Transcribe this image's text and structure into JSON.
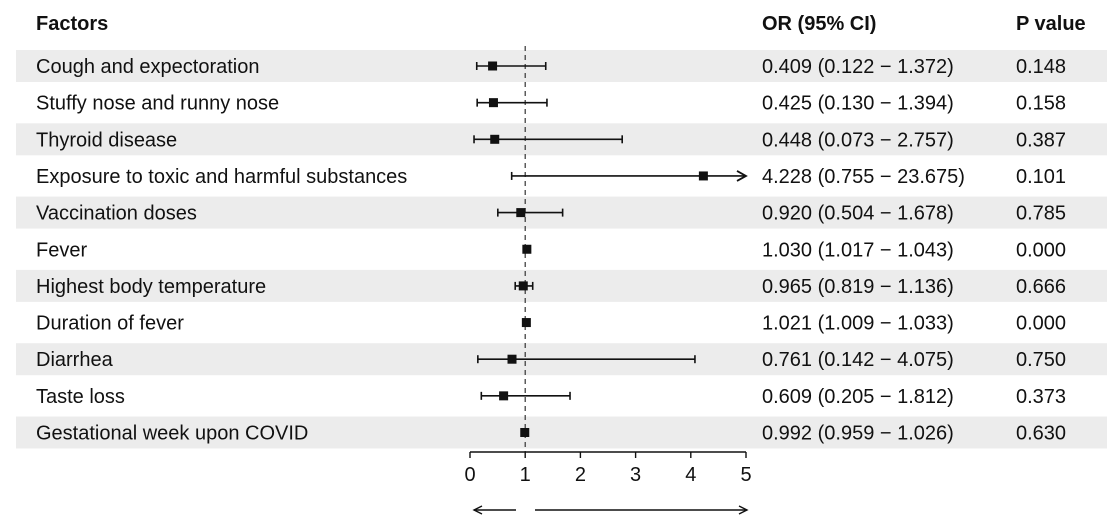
{
  "chart_data": {
    "type": "forest",
    "headers": {
      "factors": "Factors",
      "or_ci": "OR (95% CI)",
      "p_value": "P value"
    },
    "rows": [
      {
        "factor": "Cough and expectoration",
        "or": 0.409,
        "lo": 0.122,
        "hi": 1.372,
        "or_text": "0.409 (0.122 − 1.372)",
        "p": "0.148",
        "shaded": true
      },
      {
        "factor": "Stuffy nose and runny nose",
        "or": 0.425,
        "lo": 0.13,
        "hi": 1.394,
        "or_text": "0.425 (0.130 − 1.394)",
        "p": "0.158",
        "shaded": false
      },
      {
        "factor": "Thyroid disease",
        "or": 0.448,
        "lo": 0.073,
        "hi": 2.757,
        "or_text": "0.448 (0.073 − 2.757)",
        "p": "0.387",
        "shaded": true
      },
      {
        "factor": "Exposure to toxic and harmful substances",
        "or": 4.228,
        "lo": 0.755,
        "hi": 23.675,
        "or_text": "4.228 (0.755 − 23.675)",
        "p": "0.101",
        "shaded": false
      },
      {
        "factor": "Vaccination doses",
        "or": 0.92,
        "lo": 0.504,
        "hi": 1.678,
        "or_text": "0.920 (0.504 − 1.678)",
        "p": "0.785",
        "shaded": true
      },
      {
        "factor": "Fever",
        "or": 1.03,
        "lo": 1.017,
        "hi": 1.043,
        "or_text": "1.030 (1.017 − 1.043)",
        "p": "0.000",
        "shaded": false
      },
      {
        "factor": "Highest body temperature",
        "or": 0.965,
        "lo": 0.819,
        "hi": 1.136,
        "or_text": "0.965 (0.819 − 1.136)",
        "p": "0.666",
        "shaded": true
      },
      {
        "factor": "Duration of fever",
        "or": 1.021,
        "lo": 1.009,
        "hi": 1.033,
        "or_text": "1.021 (1.009 − 1.033)",
        "p": "0.000",
        "shaded": false
      },
      {
        "factor": "Diarrhea",
        "or": 0.761,
        "lo": 0.142,
        "hi": 4.075,
        "or_text": "0.761 (0.142 − 4.075)",
        "p": "0.750",
        "shaded": true
      },
      {
        "factor": "Taste loss",
        "or": 0.609,
        "lo": 0.205,
        "hi": 1.812,
        "or_text": "0.609 (0.205 − 1.812)",
        "p": "0.373",
        "shaded": false
      },
      {
        "factor": "Gestational week upon COVID",
        "or": 0.992,
        "lo": 0.959,
        "hi": 1.026,
        "or_text": "0.992 (0.959 − 1.026)",
        "p": "0.630",
        "shaded": true
      }
    ],
    "xlim": [
      0,
      5
    ],
    "xticks": [
      "0",
      "1",
      "2",
      "3",
      "4",
      "5"
    ],
    "reference_line": 1,
    "colors": {
      "row_shade": "#ececec",
      "mark": "#111111"
    }
  }
}
